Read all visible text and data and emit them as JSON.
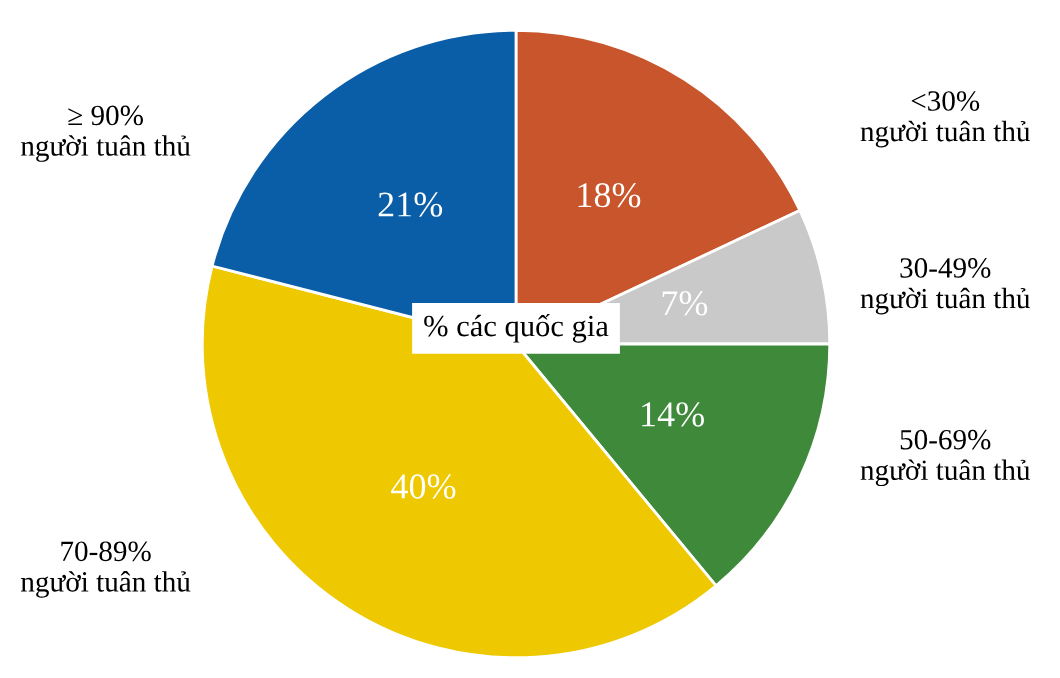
{
  "chart_data": {
    "type": "pie",
    "title": "% các quốc gia",
    "categories": [
      "<30%\nngười tuân thủ",
      "30-49%\nngười tuân thủ",
      "50-69%\nngười tuân thủ",
      "70-89%\nngười tuân thủ",
      "≥ 90%\nngười tuân thủ"
    ],
    "values": [
      18,
      7,
      14,
      40,
      21
    ],
    "colors": [
      "#c8552b",
      "#c9c9c9",
      "#3e8a3a",
      "#eec800",
      "#0a5ea8"
    ],
    "value_labels": [
      "18%",
      "7%",
      "14%",
      "40%",
      "21%"
    ]
  }
}
